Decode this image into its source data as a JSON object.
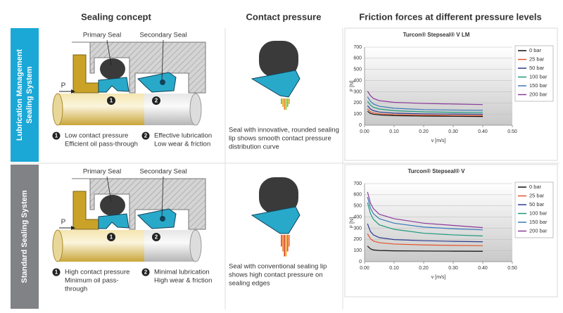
{
  "headers": [
    "Sealing concept",
    "Contact pressure",
    "Friction forces at different pressure levels"
  ],
  "rows": [
    {
      "label_lines": [
        "Lubrication Management",
        "Sealing System"
      ],
      "color": "#1ba8d6",
      "primary_seal": "Primary Seal",
      "secondary_seal": "Secondary Seal",
      "pressure": "P",
      "notes": [
        {
          "number": "1",
          "lines": [
            "Low contact pressure",
            "Efficient oil pass-through"
          ]
        },
        {
          "number": "2",
          "lines": [
            "Effective lubrication",
            "Low wear & friction"
          ]
        }
      ],
      "caption_lines": [
        "Seal with innovative, rounded sealing",
        "lip shows smooth contact pressure",
        "distribution curve"
      ]
    },
    {
      "label_lines": [
        "Standard Sealing System"
      ],
      "color": "#808285",
      "primary_seal": "Primary Seal",
      "secondary_seal": "Secondary Seal",
      "pressure": "P",
      "notes": [
        {
          "number": "1",
          "lines": [
            "High contact pressure",
            "Minimum oil pass-",
            "through"
          ]
        },
        {
          "number": "2",
          "lines": [
            "Minimal lubrication",
            "High wear & friction"
          ]
        }
      ],
      "caption_lines": [
        "Seal with conventional sealing lip",
        "shows high contact pressure on",
        "sealing edges"
      ]
    }
  ],
  "chart_data": [
    {
      "type": "line",
      "title": "Turcon® Stepseal® V LM",
      "x_label": "v [m/s]",
      "y_label": "F [N]",
      "x": [
        0.01,
        0.02,
        0.03,
        0.05,
        0.1,
        0.2,
        0.3,
        0.4
      ],
      "series": [
        {
          "name": "0 bar",
          "color": "#111111",
          "values": [
            125,
            105,
            98,
            92,
            86,
            82,
            80,
            78
          ]
        },
        {
          "name": "25 bar",
          "color": "#e2532a",
          "values": [
            145,
            120,
            110,
            102,
            95,
            90,
            88,
            86
          ]
        },
        {
          "name": "50 bar",
          "color": "#2e3a8c",
          "values": [
            175,
            145,
            130,
            118,
            108,
            102,
            100,
            98
          ]
        },
        {
          "name": "100 bar",
          "color": "#1b9a7a",
          "values": [
            215,
            180,
            160,
            145,
            130,
            120,
            116,
            113
          ]
        },
        {
          "name": "150 bar",
          "color": "#3a7ab8",
          "values": [
            255,
            215,
            190,
            170,
            152,
            140,
            136,
            133
          ]
        },
        {
          "name": "200 bar",
          "color": "#8c3a9a",
          "values": [
            305,
            265,
            240,
            220,
            205,
            195,
            190,
            185
          ]
        }
      ],
      "xlim": [
        0,
        0.5
      ],
      "ylim": [
        0,
        700
      ],
      "xticks": [
        {
          "value": 0,
          "label": "0.00"
        },
        {
          "value": 0.1,
          "label": "0.10"
        },
        {
          "value": 0.2,
          "label": "0.20"
        },
        {
          "value": 0.3,
          "label": "0.30"
        },
        {
          "value": 0.4,
          "label": "0.40"
        },
        {
          "value": 0.5,
          "label": "0.50"
        }
      ],
      "yticks": [
        0,
        100,
        200,
        300,
        400,
        500,
        600,
        700
      ],
      "grid": true
    },
    {
      "type": "line",
      "title": "Turcon® Stepseal® V",
      "x_label": "v [m/s]",
      "y_label": "F [N]",
      "x": [
        0.01,
        0.02,
        0.03,
        0.05,
        0.1,
        0.2,
        0.3,
        0.4
      ],
      "series": [
        {
          "name": "0 bar",
          "color": "#111111",
          "values": [
            140,
            115,
            105,
            100,
            97,
            95,
            94,
            93
          ]
        },
        {
          "name": "25 bar",
          "color": "#e2532a",
          "values": [
            250,
            205,
            185,
            170,
            158,
            150,
            146,
            143
          ]
        },
        {
          "name": "50 bar",
          "color": "#2e3a8c",
          "values": [
            340,
            270,
            240,
            215,
            198,
            188,
            182,
            178
          ]
        },
        {
          "name": "100 bar",
          "color": "#1b9a7a",
          "values": [
            530,
            430,
            380,
            330,
            290,
            255,
            240,
            230
          ]
        },
        {
          "name": "150 bar",
          "color": "#3a7ab8",
          "values": [
            580,
            480,
            430,
            385,
            345,
            310,
            295,
            285
          ]
        },
        {
          "name": "200 bar",
          "color": "#8c3a9a",
          "values": [
            625,
            525,
            475,
            425,
            385,
            345,
            325,
            305
          ]
        }
      ],
      "xlim": [
        0,
        0.5
      ],
      "ylim": [
        0,
        700
      ],
      "xticks": [
        {
          "value": 0,
          "label": "0.00"
        },
        {
          "value": 0.1,
          "label": "0.10"
        },
        {
          "value": 0.2,
          "label": "0.20"
        },
        {
          "value": 0.3,
          "label": "0.30"
        },
        {
          "value": 0.4,
          "label": "0.40"
        },
        {
          "value": 0.5,
          "label": "0.50"
        }
      ],
      "yticks": [
        0,
        100,
        200,
        300,
        400,
        500,
        600,
        700
      ],
      "grid": true
    }
  ]
}
